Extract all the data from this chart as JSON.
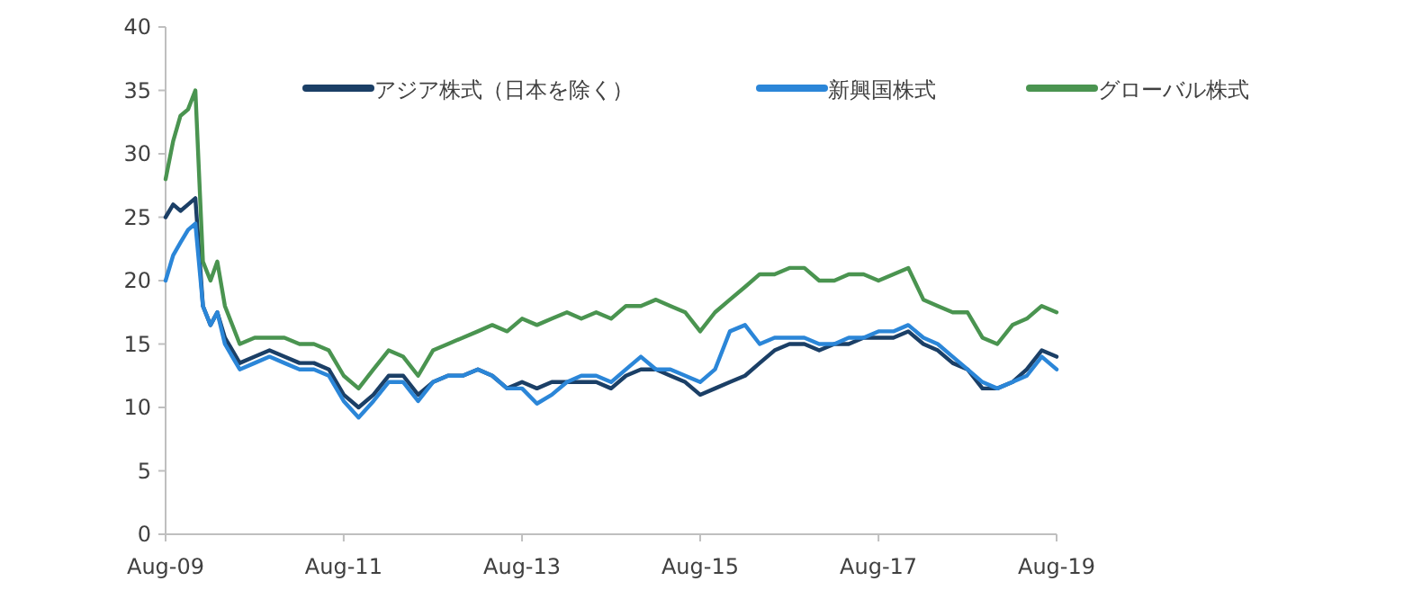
{
  "chart_data": {
    "type": "line",
    "legend": "top",
    "grid": false,
    "marker": "none",
    "line_style": "solid",
    "x": [
      "2009-08",
      "2009-09",
      "2009-10",
      "2009-11",
      "2009-12",
      "2010-01",
      "2010-02",
      "2010-03",
      "2010-04",
      "2010-06",
      "2010-08",
      "2010-10",
      "2010-12",
      "2011-02",
      "2011-04",
      "2011-06",
      "2011-08",
      "2011-10",
      "2011-12",
      "2012-02",
      "2012-04",
      "2012-06",
      "2012-08",
      "2012-10",
      "2012-12",
      "2013-02",
      "2013-04",
      "2013-06",
      "2013-08",
      "2013-10",
      "2013-12",
      "2014-02",
      "2014-04",
      "2014-06",
      "2014-08",
      "2014-10",
      "2014-12",
      "2015-02",
      "2015-04",
      "2015-06",
      "2015-08",
      "2015-10",
      "2015-12",
      "2016-02",
      "2016-04",
      "2016-06",
      "2016-08",
      "2016-10",
      "2016-12",
      "2017-02",
      "2017-04",
      "2017-06",
      "2017-08",
      "2017-10",
      "2017-12",
      "2018-02",
      "2018-04",
      "2018-06",
      "2018-08",
      "2018-10",
      "2018-12",
      "2019-02",
      "2019-04",
      "2019-06",
      "2019-08"
    ],
    "series": [
      {
        "name": "アジア株式（日本を除く）",
        "color": "#1b3f66",
        "values": [
          25,
          26,
          25.5,
          26,
          26.5,
          18,
          16.5,
          17.5,
          15.5,
          13.5,
          14,
          14.5,
          14,
          13.5,
          13.5,
          13,
          11,
          10,
          11,
          12.5,
          12.5,
          11,
          12,
          12.5,
          12.5,
          13,
          12.5,
          11.5,
          12,
          11.5,
          12,
          12,
          12,
          12,
          11.5,
          12.5,
          13,
          13,
          12.5,
          12,
          11,
          11.5,
          12,
          12.5,
          13.5,
          14.5,
          15,
          15,
          14.5,
          15,
          15,
          15.5,
          15.5,
          15.5,
          16,
          15,
          14.5,
          13.5,
          13,
          11.5,
          11.5,
          12,
          13,
          14.5,
          14
        ]
      },
      {
        "name": "新興国株式",
        "color": "#2b86d8",
        "values": [
          20,
          22,
          23,
          24,
          24.5,
          18,
          16.5,
          17.5,
          15,
          13,
          13.5,
          14,
          13.5,
          13,
          13,
          12.5,
          10.5,
          9.2,
          10.5,
          12,
          12,
          10.5,
          12,
          12.5,
          12.5,
          13,
          12.5,
          11.5,
          11.5,
          10.3,
          11,
          12,
          12.5,
          12.5,
          12,
          13,
          14,
          13,
          13,
          12.5,
          12,
          13,
          16,
          16.5,
          15,
          15.5,
          15.5,
          15.5,
          15,
          15,
          15.5,
          15.5,
          16,
          16,
          16.5,
          15.5,
          15,
          14,
          13,
          12,
          11.5,
          12,
          12.5,
          14,
          13
        ]
      },
      {
        "name": "グローバル株式",
        "color": "#4a9450",
        "values": [
          28,
          31,
          33,
          33.5,
          35,
          21.5,
          20,
          21.5,
          18,
          15,
          15.5,
          15.5,
          15.5,
          15,
          15,
          14.5,
          12.5,
          11.5,
          13,
          14.5,
          14,
          12.5,
          14.5,
          15,
          15.5,
          16,
          16.5,
          16,
          17,
          16.5,
          17,
          17.5,
          17,
          17.5,
          17,
          18,
          18,
          18.5,
          18,
          17.5,
          16,
          17.5,
          18.5,
          19.5,
          20.5,
          20.5,
          21,
          21,
          20,
          20,
          20.5,
          20.5,
          20,
          20.5,
          21,
          18.5,
          18,
          17.5,
          17.5,
          15.5,
          15,
          16.5,
          17,
          18,
          17.5
        ]
      }
    ],
    "xlim": [
      "2009-08",
      "2019-08"
    ],
    "xticks": [
      {
        "value": "2009-08",
        "label": "Aug-09"
      },
      {
        "value": "2011-08",
        "label": "Aug-11"
      },
      {
        "value": "2013-08",
        "label": "Aug-13"
      },
      {
        "value": "2015-08",
        "label": "Aug-15"
      },
      {
        "value": "2017-08",
        "label": "Aug-17"
      },
      {
        "value": "2019-08",
        "label": "Aug-19"
      }
    ],
    "ylim": [
      0,
      40
    ],
    "yticks": [
      0,
      5,
      10,
      15,
      20,
      25,
      30,
      35,
      40
    ]
  }
}
